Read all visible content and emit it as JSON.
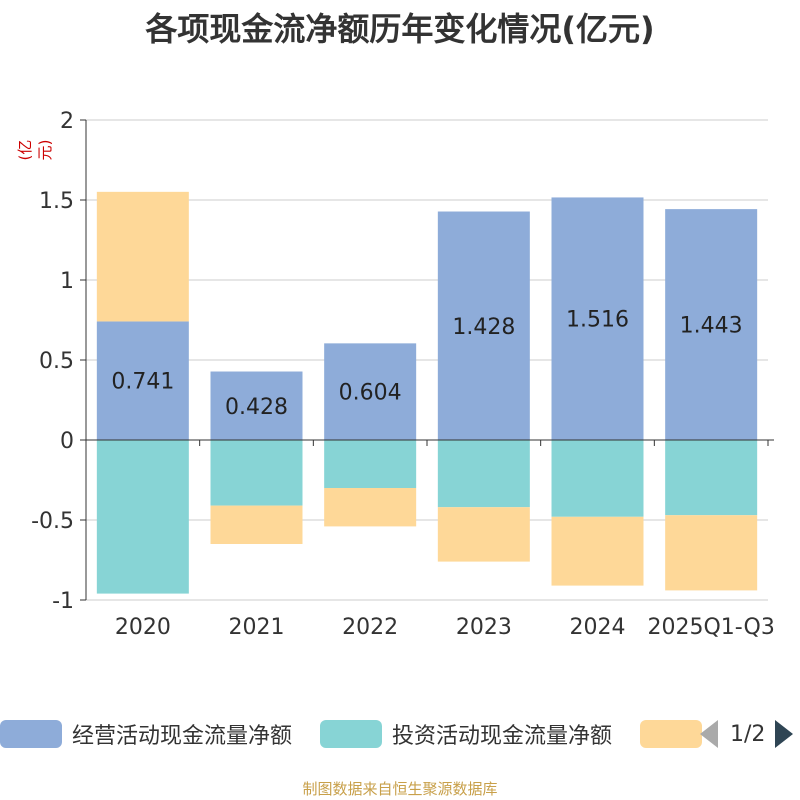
{
  "title": "各项现金流净额历年变化情况(亿元)",
  "unit_label": "(亿元)",
  "source": "制图数据来自恒生聚源数据库",
  "legend": {
    "items": [
      {
        "label": "经营活动现金流量净额",
        "color": "#8eacd9"
      },
      {
        "label": "投资活动现金流量净额",
        "color": "#87d4d5"
      },
      {
        "label": "",
        "color": "#fed898"
      }
    ],
    "page": "1/2"
  },
  "chart_data": {
    "type": "bar",
    "stacked": true,
    "categories": [
      "2020",
      "2021",
      "2022",
      "2023",
      "2024",
      "2025Q1-Q3"
    ],
    "ylim": [
      -1,
      2
    ],
    "yticks": [
      "2",
      "1.5",
      "1",
      "0.5",
      "0",
      "-0.5",
      "-1"
    ],
    "grid": true,
    "legend_position": "bottom",
    "series": [
      {
        "name": "经营活动现金流量净额",
        "color": "#8eacd9",
        "values": [
          0.741,
          0.428,
          0.604,
          1.428,
          1.516,
          1.443
        ],
        "labels": [
          "0.741",
          "0.428",
          "0.604",
          "1.428",
          "1.516",
          "1.443"
        ]
      },
      {
        "name": "投资活动现金流量净额",
        "color": "#87d4d5",
        "values": [
          -0.96,
          -0.41,
          -0.3,
          -0.42,
          -0.48,
          -0.47
        ]
      },
      {
        "name": "",
        "color": "#fed898",
        "values": [
          0.81,
          -0.24,
          -0.24,
          -0.34,
          -0.43,
          -0.47
        ]
      }
    ]
  }
}
